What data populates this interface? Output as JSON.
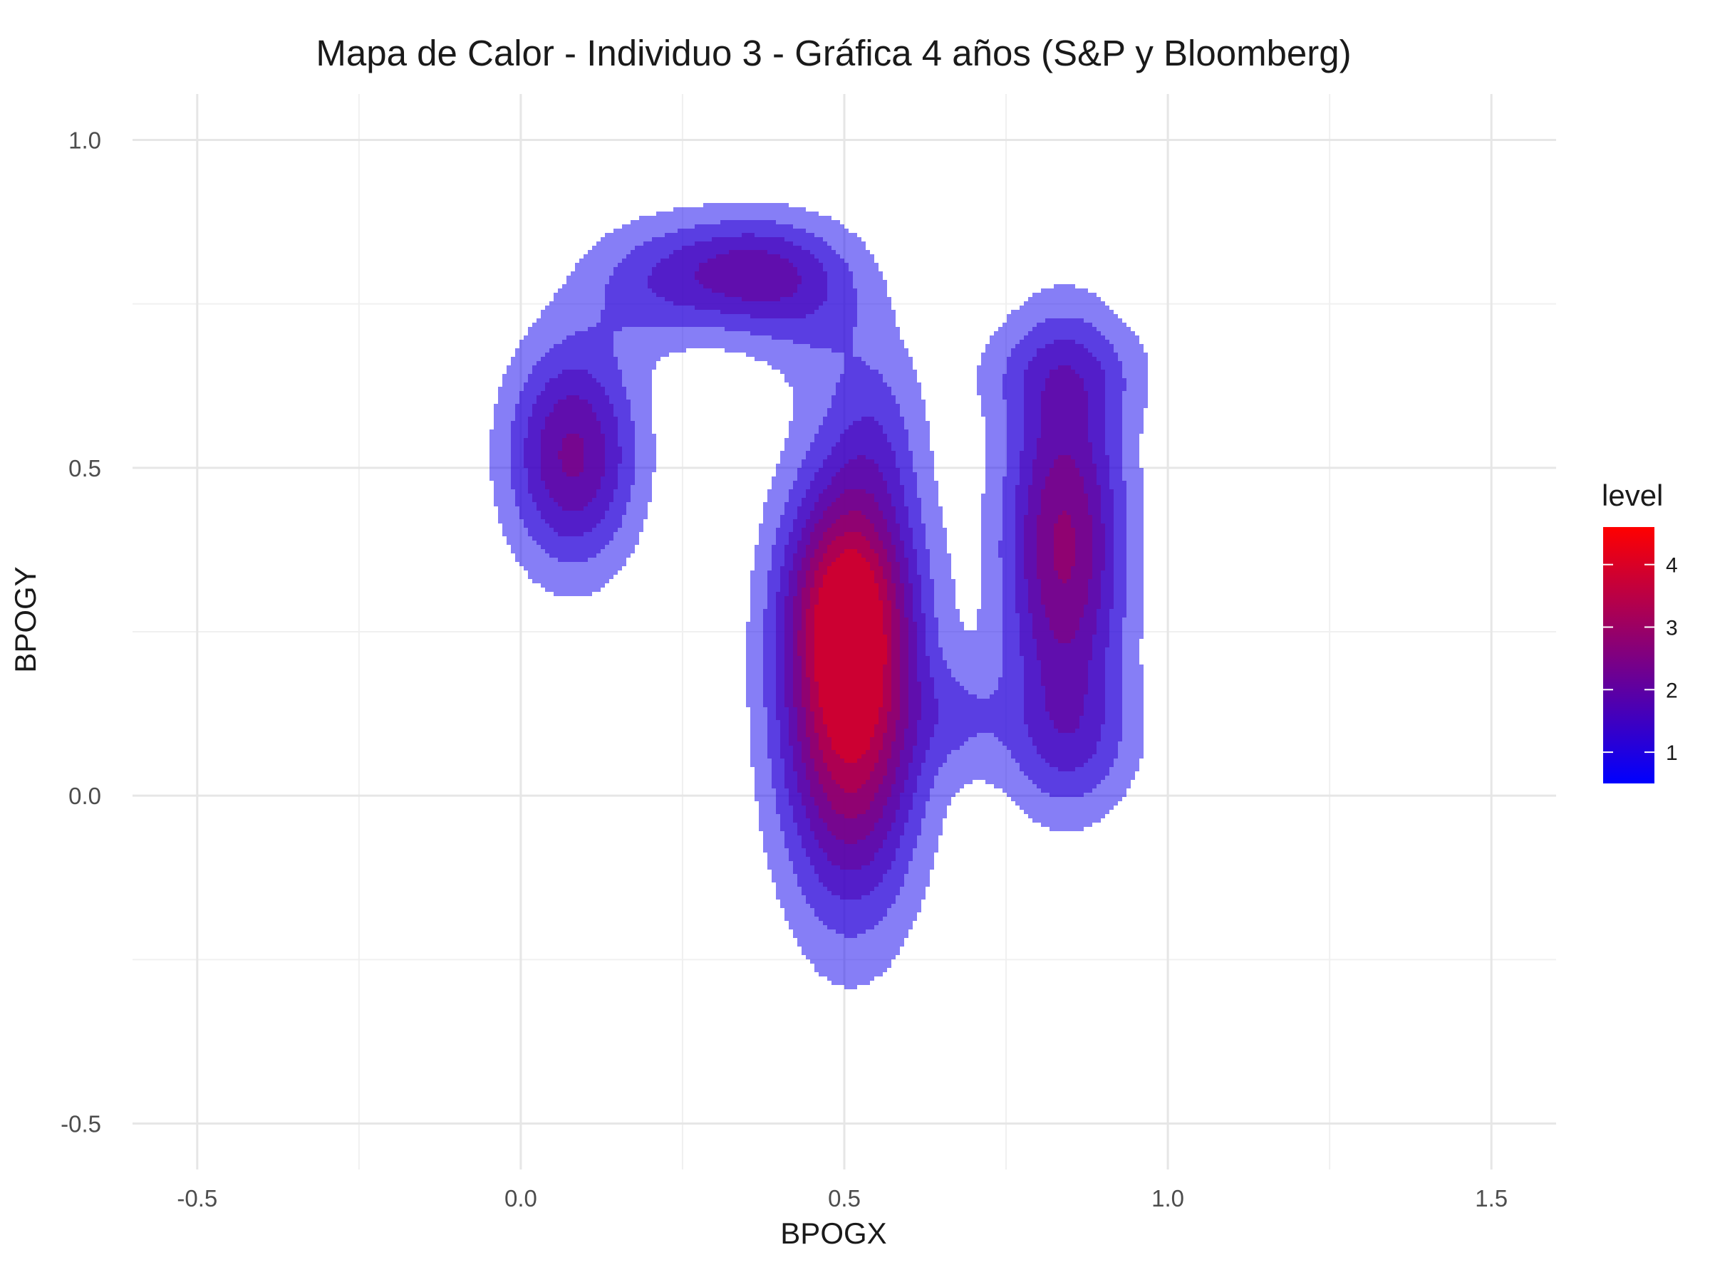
{
  "chart_data": {
    "type": "heatmap",
    "title": "Mapa de Calor - Individuo 3 - Gráfica 4 años (S&P y Bloomberg)",
    "xlabel": "BPOGX",
    "ylabel": "BPOGY",
    "xlim": [
      -0.6,
      1.6
    ],
    "ylim": [
      -0.57,
      1.07
    ],
    "x_ticks": [
      -0.5,
      0.0,
      0.5,
      1.0,
      1.5
    ],
    "x_tick_labels": [
      "-0.5",
      "0.0",
      "0.5",
      "1.0",
      "1.5"
    ],
    "y_ticks": [
      -0.5,
      0.0,
      0.5,
      1.0
    ],
    "y_tick_labels": [
      "-0.5",
      "0.0",
      "0.5",
      "1.0"
    ],
    "grid": true,
    "legend": {
      "title": "level",
      "placement": "right",
      "ticks": [
        1,
        2,
        3,
        4
      ],
      "tick_labels": [
        "1",
        "2",
        "3",
        "4"
      ],
      "range": [
        0.5,
        4.6
      ],
      "low_color": "#0000ff",
      "high_color": "#ff0000"
    },
    "density_peaks": [
      {
        "x": 0.51,
        "y": 0.17,
        "level": 4.6,
        "sx": 0.075,
        "sy": 0.22
      },
      {
        "x": 0.5,
        "y": 0.3,
        "level": 1.2,
        "sx": 0.06,
        "sy": 0.1
      },
      {
        "x": 0.84,
        "y": 0.38,
        "level": 3.1,
        "sx": 0.065,
        "sy": 0.2
      },
      {
        "x": 0.85,
        "y": 0.08,
        "level": 0.9,
        "sx": 0.08,
        "sy": 0.08
      },
      {
        "x": 0.08,
        "y": 0.52,
        "level": 2.6,
        "sx": 0.07,
        "sy": 0.12
      },
      {
        "x": 0.35,
        "y": 0.8,
        "level": 1.9,
        "sx": 0.09,
        "sy": 0.06
      },
      {
        "x": 0.2,
        "y": 0.78,
        "level": 1.0,
        "sx": 0.08,
        "sy": 0.07
      },
      {
        "x": 0.45,
        "y": 0.75,
        "level": 0.8,
        "sx": 0.08,
        "sy": 0.08
      },
      {
        "x": 0.55,
        "y": 0.55,
        "level": 0.7,
        "sx": 0.05,
        "sy": 0.1
      },
      {
        "x": 0.84,
        "y": 0.65,
        "level": 0.8,
        "sx": 0.1,
        "sy": 0.06
      },
      {
        "x": 0.68,
        "y": 0.12,
        "level": 0.7,
        "sx": 0.05,
        "sy": 0.06
      }
    ],
    "contour_levels": [
      0.5,
      1.0,
      1.5,
      2.0,
      2.5,
      3.0,
      3.5,
      4.0
    ]
  }
}
